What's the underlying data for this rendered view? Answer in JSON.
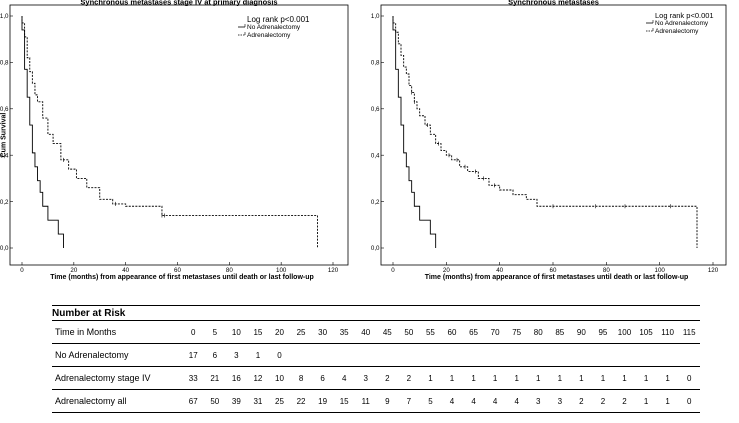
{
  "chart_data": [
    {
      "type": "line",
      "subtype": "kaplan-meier",
      "title": "Synchronous metastases stage IV at primary diagnosis",
      "xlabel": "Time (months) from appearance of first metastases until death or last follow-up",
      "ylabel": "Cum Survival",
      "xlim": [
        0,
        120
      ],
      "ylim": [
        0,
        1
      ],
      "xticks": [
        "0",
        "20",
        "40",
        "60",
        "80",
        "100",
        "120"
      ],
      "yticks": [
        "0,0",
        "0,2",
        "0,4",
        "0,6",
        "0,8",
        "1,0"
      ],
      "annotation": "Log rank p<0.001",
      "legend_position": "top-right",
      "series": [
        {
          "name": "No Adrenalectomy",
          "style": "solid",
          "color": "#000000",
          "x": [
            0,
            1,
            2,
            3,
            4,
            5,
            6,
            7,
            8,
            10,
            12,
            14,
            16
          ],
          "y": [
            0.94,
            0.77,
            0.65,
            0.53,
            0.41,
            0.35,
            0.29,
            0.24,
            0.18,
            0.12,
            0.12,
            0.06,
            0.0
          ],
          "censored_x": []
        },
        {
          "name": "Adrenalectomy",
          "style": "dashed",
          "color": "#000000",
          "x": [
            0,
            1,
            2,
            3,
            4,
            5,
            6,
            8,
            10,
            12,
            15,
            18,
            21,
            25,
            30,
            35,
            40,
            54,
            114
          ],
          "y": [
            0.97,
            0.91,
            0.82,
            0.76,
            0.71,
            0.66,
            0.63,
            0.56,
            0.49,
            0.45,
            0.38,
            0.34,
            0.3,
            0.26,
            0.21,
            0.19,
            0.18,
            0.14,
            0.0
          ],
          "censored_x": [
            16,
            36,
            54,
            55
          ]
        }
      ]
    },
    {
      "type": "line",
      "subtype": "kaplan-meier",
      "title": "Synchronous metastases",
      "xlabel": "Time (months) from appearance of first metastases until death or last follow-up",
      "ylabel": "",
      "xlim": [
        0,
        120
      ],
      "ylim": [
        0,
        1
      ],
      "xticks": [
        "0",
        "20",
        "40",
        "60",
        "80",
        "100",
        "120"
      ],
      "yticks": [
        "0,0",
        "0,2",
        "0,4",
        "0,6",
        "0,8",
        "1,0"
      ],
      "annotation": "Log rank p<0.001",
      "legend_position": "top-right",
      "series": [
        {
          "name": "No Adrenalectomy",
          "style": "solid",
          "color": "#000000",
          "x": [
            0,
            1,
            2,
            3,
            4,
            5,
            6,
            7,
            8,
            10,
            12,
            14,
            16
          ],
          "y": [
            0.94,
            0.77,
            0.65,
            0.53,
            0.41,
            0.35,
            0.29,
            0.24,
            0.18,
            0.12,
            0.12,
            0.06,
            0.0
          ],
          "censored_x": []
        },
        {
          "name": "Adrenalectomy",
          "style": "dashed",
          "color": "#000000",
          "x": [
            0,
            1,
            2,
            3,
            4,
            5,
            6,
            7,
            8,
            9,
            10,
            12,
            14,
            16,
            18,
            20,
            22,
            25,
            28,
            32,
            36,
            40,
            45,
            50,
            54,
            114
          ],
          "y": [
            0.97,
            0.93,
            0.88,
            0.83,
            0.78,
            0.75,
            0.7,
            0.67,
            0.63,
            0.6,
            0.57,
            0.53,
            0.49,
            0.45,
            0.42,
            0.4,
            0.38,
            0.35,
            0.33,
            0.3,
            0.27,
            0.25,
            0.23,
            0.21,
            0.18,
            0.0
          ],
          "censored_x": [
            7,
            8,
            13,
            17,
            21,
            24,
            27,
            31,
            34,
            38,
            60,
            76,
            87,
            104
          ]
        }
      ]
    }
  ],
  "risk_table": {
    "title": "Number at Risk",
    "rows": [
      {
        "label": "Time in Months",
        "values": [
          "0",
          "5",
          "10",
          "15",
          "20",
          "25",
          "30",
          "35",
          "40",
          "45",
          "50",
          "55",
          "60",
          "65",
          "70",
          "75",
          "80",
          "85",
          "90",
          "95",
          "100",
          "105",
          "110",
          "115"
        ]
      },
      {
        "label": "No Adrenalectomy",
        "values": [
          "17",
          "6",
          "3",
          "1",
          "0",
          "",
          "",
          "",
          "",
          "",
          "",
          "",
          "",
          "",
          "",
          "",
          "",
          "",
          "",
          "",
          "",
          "",
          "",
          ""
        ]
      },
      {
        "label": "Adrenalectomy stage IV",
        "values": [
          "33",
          "21",
          "16",
          "12",
          "10",
          "8",
          "6",
          "4",
          "3",
          "2",
          "2",
          "1",
          "1",
          "1",
          "1",
          "1",
          "1",
          "1",
          "1",
          "1",
          "1",
          "1",
          "1",
          "0"
        ]
      },
      {
        "label": "Adrenalectomy all",
        "values": [
          "67",
          "50",
          "39",
          "31",
          "25",
          "22",
          "19",
          "15",
          "11",
          "9",
          "7",
          "5",
          "4",
          "4",
          "4",
          "4",
          "3",
          "3",
          "2",
          "2",
          "2",
          "1",
          "1",
          "0"
        ]
      }
    ]
  }
}
